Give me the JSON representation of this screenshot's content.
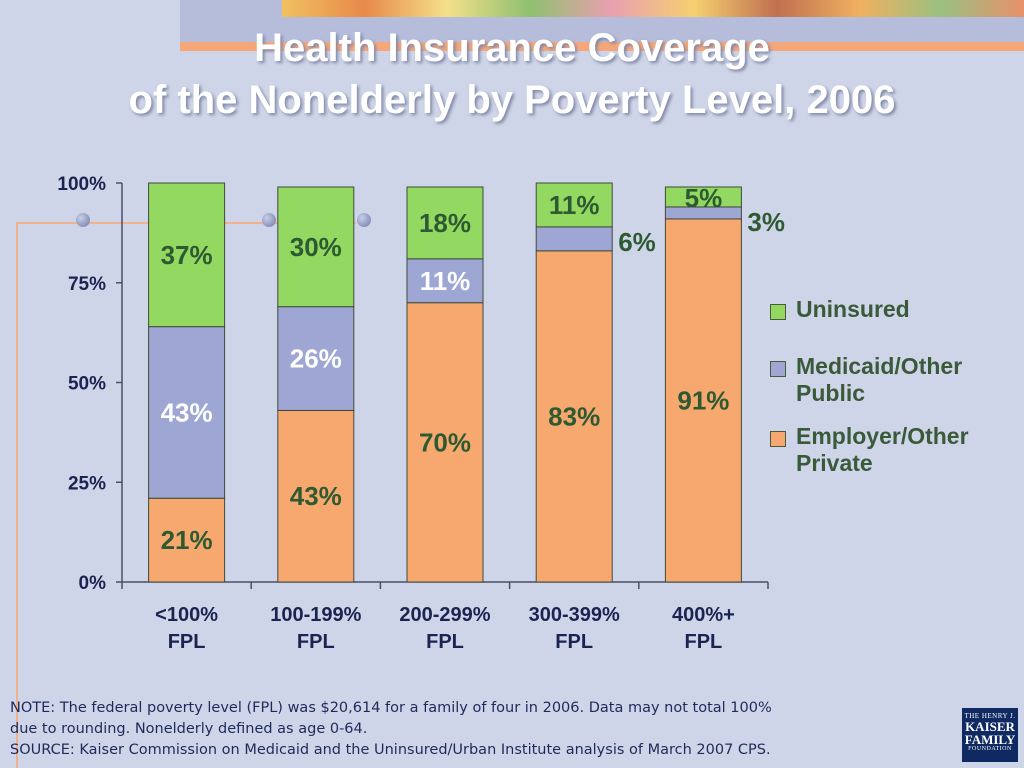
{
  "slide": {
    "title_line1": "Health Insurance Coverage",
    "title_line2": "of the Nonelderly by Poverty Level, 2006",
    "note_line1": "NOTE: The federal poverty level (FPL) was $20,614 for a family of four in 2006. Data may not total 100%",
    "note_line2": "due to rounding.  Nonelderly defined as age 0-64.",
    "source": "SOURCE: Kaiser Commission on Medicaid and the Uninsured/Urban Institute analysis of March 2007 CPS.",
    "logo_top": "THE HENRY J.",
    "logo_line1": "KAISER",
    "logo_line2": "FAMILY",
    "logo_bottom": "FOUNDATION"
  },
  "chart_data": {
    "type": "bar",
    "stacked": true,
    "title": "Health Insurance Coverage of the Nonelderly by Poverty Level, 2006",
    "categories": [
      [
        "<100%",
        "FPL"
      ],
      [
        "100-199%",
        "FPL"
      ],
      [
        "200-299%",
        "FPL"
      ],
      [
        "300-399%",
        "FPL"
      ],
      [
        "400%+",
        "FPL"
      ]
    ],
    "series": [
      {
        "name": "Employer/Other Private",
        "legend_lines": [
          "Employer/Other",
          "Private"
        ],
        "color": "#f7a86e",
        "values": [
          21,
          43,
          70,
          83,
          91
        ]
      },
      {
        "name": "Medicaid/Other Public",
        "legend_lines": [
          "Medicaid/Other",
          "Public"
        ],
        "color": "#9ea6d3",
        "values": [
          43,
          26,
          11,
          6,
          3
        ]
      },
      {
        "name": "Uninsured",
        "legend_lines": [
          "Uninsured"
        ],
        "color": "#93d861",
        "values": [
          37,
          30,
          18,
          11,
          5
        ]
      }
    ],
    "legend_order": [
      "Uninsured",
      "Medicaid/Other Public",
      "Employer/Other Private"
    ],
    "yticks": [
      "0%",
      "25%",
      "50%",
      "75%",
      "100%"
    ],
    "ylim": [
      0,
      100
    ],
    "grid": false,
    "legend": "right"
  }
}
